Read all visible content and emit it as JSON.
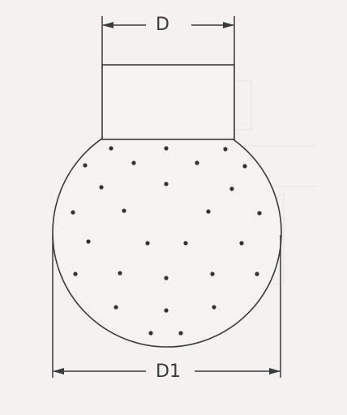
{
  "dimensions": {
    "top_label": "D",
    "bottom_label": "D1"
  },
  "colors": {
    "line": "#3a3a3a",
    "background": "#f3f2f0",
    "body_fill": "#f4f3f1",
    "dot": "#333333"
  }
}
